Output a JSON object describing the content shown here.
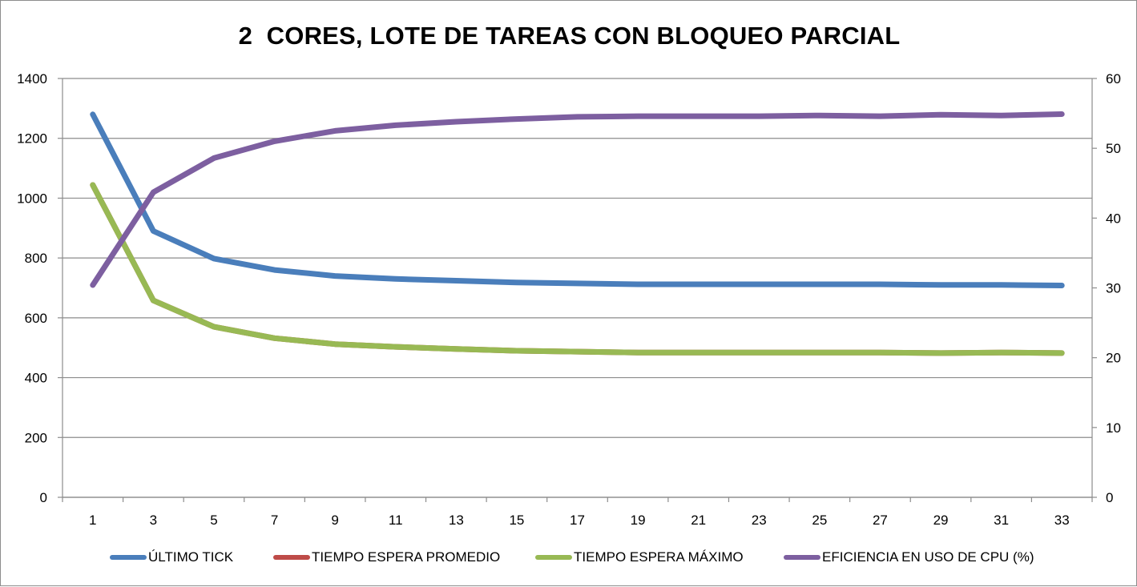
{
  "chart_data": {
    "type": "line",
    "title": "2  CORES, LOTE DE TAREAS CON BLOQUEO PARCIAL",
    "x": [
      1,
      3,
      5,
      7,
      9,
      11,
      13,
      15,
      17,
      19,
      21,
      23,
      25,
      27,
      29,
      31,
      33
    ],
    "x_tick_labels": [
      "1",
      "3",
      "5",
      "7",
      "9",
      "11",
      "13",
      "15",
      "17",
      "19",
      "21",
      "23",
      "25",
      "27",
      "29",
      "31",
      "33"
    ],
    "y_left": {
      "ylim": [
        0,
        1400
      ],
      "ticks": [
        "0",
        "200",
        "400",
        "600",
        "800",
        "1000",
        "1200",
        "1400"
      ]
    },
    "y_right": {
      "ylim": [
        0,
        60
      ],
      "ticks": [
        "0",
        "10",
        "20",
        "30",
        "40",
        "50",
        "60"
      ]
    },
    "grid": "horizontal",
    "legend_position": "bottom",
    "series": [
      {
        "name": "ÚLTIMO TICK",
        "axis": "left",
        "color": "#4a7ebb",
        "values": [
          1280,
          890,
          798,
          760,
          740,
          730,
          724,
          718,
          715,
          712,
          712,
          712,
          712,
          712,
          710,
          710,
          708
        ]
      },
      {
        "name": "TIEMPO ESPERA PROMEDIO",
        "axis": "left",
        "color": "#be4b48",
        "values": [
          1044,
          658,
          570,
          532,
          512,
          503,
          496,
          490,
          487,
          484,
          484,
          484,
          484,
          484,
          482,
          484,
          482
        ]
      },
      {
        "name": "TIEMPO ESPERA MÁXIMO",
        "axis": "left",
        "color": "#98b954",
        "values": [
          1044,
          658,
          570,
          532,
          512,
          503,
          496,
          490,
          487,
          484,
          484,
          484,
          484,
          484,
          482,
          484,
          482
        ]
      },
      {
        "name": "EFICIENCIA EN USO DE CPU (%)",
        "axis": "right",
        "color": "#7d5fa0",
        "values": [
          30.4,
          43.7,
          48.6,
          51.0,
          52.5,
          53.3,
          53.8,
          54.2,
          54.5,
          54.6,
          54.6,
          54.6,
          54.7,
          54.6,
          54.8,
          54.7,
          54.9
        ]
      }
    ]
  }
}
